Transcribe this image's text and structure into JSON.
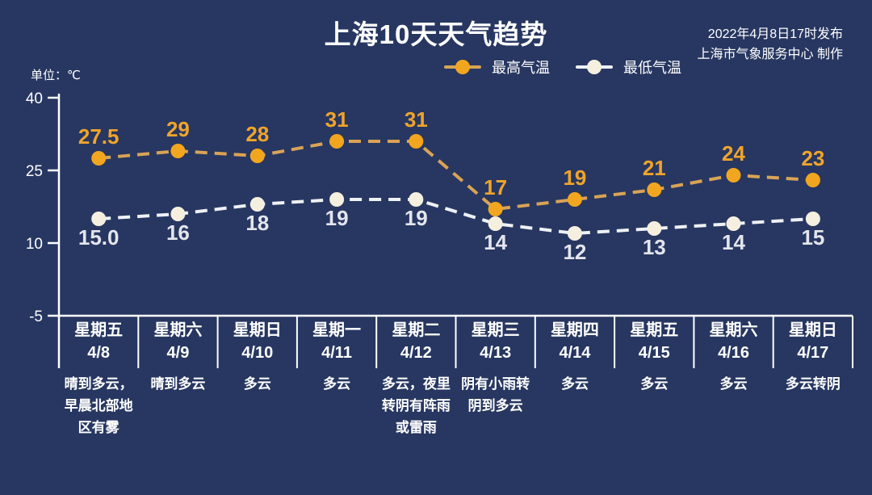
{
  "header": {
    "title": "上海10天天气趋势",
    "issued_line1": "2022年4月8日17时发布",
    "issued_line2": "上海市气象服务中心 制作",
    "unit_label": "单位：℃"
  },
  "legend": {
    "items": [
      {
        "label": "最高气温",
        "marker_color": "#f2a61f",
        "line_color": "#d9a355"
      },
      {
        "label": "最低气温",
        "marker_color": "#f5efe0",
        "line_color": "#eef1f5"
      }
    ]
  },
  "colors": {
    "background": "#273761",
    "axis": "#ffffff",
    "text": "#ffffff"
  },
  "chart_data": {
    "type": "line",
    "title": "上海10天天气趋势",
    "unit": "℃",
    "ylim": [
      -5,
      40
    ],
    "yticks": [
      40,
      25,
      10,
      -5
    ],
    "grid": false,
    "legend_position": "top",
    "categories": [
      {
        "day": "星期五",
        "date": "4/8",
        "weather": "晴到多云，早晨北部地区有雾",
        "weather_lines": [
          "晴到多云，",
          "早晨北部地",
          "区有雾"
        ]
      },
      {
        "day": "星期六",
        "date": "4/9",
        "weather": "晴到多云",
        "weather_lines": [
          "晴到多云"
        ]
      },
      {
        "day": "星期日",
        "date": "4/10",
        "weather": "多云",
        "weather_lines": [
          "多云"
        ]
      },
      {
        "day": "星期一",
        "date": "4/11",
        "weather": "多云",
        "weather_lines": [
          "多云"
        ]
      },
      {
        "day": "星期二",
        "date": "4/12",
        "weather": "多云，夜里转阴有阵雨或雷雨",
        "weather_lines": [
          "多云，夜里",
          "转阴有阵雨",
          "或雷雨"
        ]
      },
      {
        "day": "星期三",
        "date": "4/13",
        "weather": "阴有小雨转阴到多云",
        "weather_lines": [
          "阴有小雨转",
          "阴到多云"
        ]
      },
      {
        "day": "星期四",
        "date": "4/14",
        "weather": "多云",
        "weather_lines": [
          "多云"
        ]
      },
      {
        "day": "星期五",
        "date": "4/15",
        "weather": "多云",
        "weather_lines": [
          "多云"
        ]
      },
      {
        "day": "星期六",
        "date": "4/16",
        "weather": "多云",
        "weather_lines": [
          "多云"
        ]
      },
      {
        "day": "星期日",
        "date": "4/17",
        "weather": "多云转阴",
        "weather_lines": [
          "多云转阴"
        ]
      }
    ],
    "series": [
      {
        "name": "最高气温",
        "values": [
          27.5,
          29,
          28,
          31,
          31,
          17,
          19,
          21,
          24,
          23
        ],
        "labels": [
          "27.5",
          "29",
          "28",
          "31",
          "31",
          "17",
          "19",
          "21",
          "24",
          "23"
        ],
        "marker_color": "#f2a61f",
        "line_color": "#d9a355",
        "label_color": "#f0a42a",
        "label_position": "above"
      },
      {
        "name": "最低气温",
        "values": [
          15,
          16,
          18,
          19,
          19,
          14,
          12,
          13,
          14,
          15
        ],
        "labels": [
          "15.0",
          "16",
          "18",
          "19",
          "19",
          "14",
          "12",
          "13",
          "14",
          "15"
        ],
        "marker_color": "#f5efe0",
        "line_color": "#eef1f5",
        "label_color": "#e4e5ee",
        "label_position": "below"
      }
    ]
  }
}
